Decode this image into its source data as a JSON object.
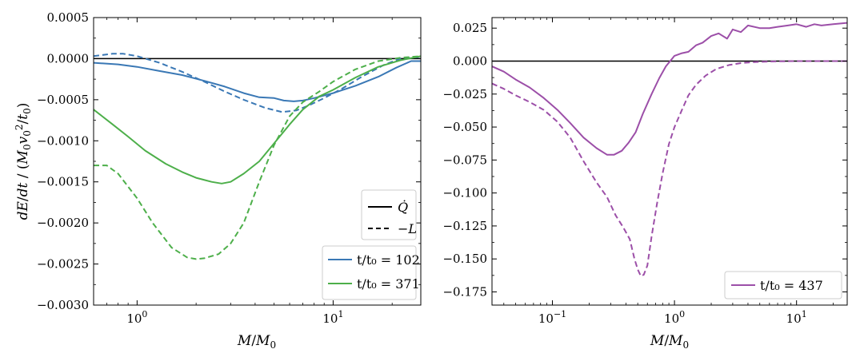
{
  "chart_data": [
    {
      "type": "line",
      "xscale": "log",
      "xlim": [
        0.6,
        28
      ],
      "ylim": [
        -0.003,
        0.0005
      ],
      "xlabel": "M/M₀",
      "ylabel": "dE/dt / (M₀v₀²/t₀)",
      "yticks": [
        0.0005,
        0.0,
        -0.0005,
        -0.001,
        -0.0015,
        -0.002,
        -0.0025,
        -0.003
      ],
      "ytick_labels": [
        "0.0005",
        "0.0000",
        "−0.0005",
        "−0.0010",
        "−0.0015",
        "−0.0020",
        "−0.0025",
        "−0.0030"
      ],
      "xticks": [
        1,
        10
      ],
      "xtick_labels": [
        {
          "base": "10",
          "exp": "0"
        },
        {
          "base": "10",
          "exp": "1"
        }
      ],
      "hline": 0,
      "style_legend": [
        {
          "label": "Q̇",
          "dash": "solid"
        },
        {
          "label": "−L",
          "dash": "dashed"
        }
      ],
      "series": [
        {
          "name": "t/t₀ = 102",
          "color": "#3a78b5",
          "dash": "solid",
          "x": [
            0.6,
            0.8,
            1.0,
            1.3,
            1.7,
            2.2,
            2.8,
            3.5,
            4.2,
            5.0,
            5.6,
            6.3,
            7.0,
            8.0,
            10,
            13,
            17,
            21,
            25,
            28
          ],
          "y": [
            -5e-05,
            -7e-05,
            -0.0001,
            -0.00015,
            -0.0002,
            -0.00027,
            -0.00034,
            -0.00042,
            -0.00047,
            -0.00048,
            -0.00051,
            -0.00052,
            -0.00051,
            -0.00048,
            -0.00042,
            -0.00033,
            -0.00022,
            -0.00011,
            -3e-05,
            -3e-05
          ]
        },
        {
          "name": "",
          "color": "#3a78b5",
          "dash": "dashed",
          "x": [
            0.6,
            0.75,
            0.85,
            1.0,
            1.3,
            1.7,
            2.2,
            2.8,
            3.5,
            4.5,
            5.5,
            6.5,
            7.5,
            9,
            11,
            14,
            18,
            22,
            28
          ],
          "y": [
            3e-05,
            6e-05,
            6e-05,
            3e-05,
            -5e-05,
            -0.00016,
            -0.00028,
            -0.0004,
            -0.0005,
            -0.0006,
            -0.00065,
            -0.00063,
            -0.00057,
            -0.00048,
            -0.00037,
            -0.00022,
            -8e-05,
            0.0,
            2e-05
          ]
        },
        {
          "name": "t/t₀ = 371",
          "color": "#4daf4a",
          "dash": "solid",
          "x": [
            0.6,
            0.75,
            0.9,
            1.1,
            1.4,
            1.7,
            2.0,
            2.4,
            2.7,
            3.0,
            3.5,
            4.2,
            5.0,
            6.0,
            7.0,
            8.5,
            10,
            13,
            17,
            22,
            28
          ],
          "y": [
            -0.00062,
            -0.0008,
            -0.00095,
            -0.00112,
            -0.00128,
            -0.00138,
            -0.00145,
            -0.0015,
            -0.00152,
            -0.0015,
            -0.0014,
            -0.00125,
            -0.00103,
            -0.0008,
            -0.00062,
            -0.00046,
            -0.00038,
            -0.00023,
            -0.0001,
            -2e-05,
            3e-05
          ]
        },
        {
          "name": "",
          "color": "#4daf4a",
          "dash": "dashed",
          "x": [
            0.6,
            0.7,
            0.8,
            1.0,
            1.2,
            1.5,
            1.8,
            2.0,
            2.2,
            2.6,
            3.0,
            3.5,
            4.2,
            5.0,
            6.0,
            7.0,
            8.5,
            10,
            13,
            17,
            22,
            28
          ],
          "y": [
            -0.0013,
            -0.0013,
            -0.0014,
            -0.0017,
            -0.002,
            -0.0023,
            -0.00242,
            -0.00244,
            -0.00243,
            -0.00238,
            -0.00225,
            -0.002,
            -0.0015,
            -0.00105,
            -0.0007,
            -0.00053,
            -0.0004,
            -0.00028,
            -0.00013,
            -3e-05,
            1e-05,
            3e-05
          ]
        }
      ],
      "legend": [
        {
          "label": "t/t₀ = 102",
          "color": "#3a78b5"
        },
        {
          "label": "t/t₀ = 371",
          "color": "#4daf4a"
        }
      ]
    },
    {
      "type": "line",
      "xscale": "log",
      "xlim": [
        0.032,
        26
      ],
      "ylim": [
        -0.185,
        0.033
      ],
      "xlabel": "M/M₀",
      "ylabel": "",
      "yticks": [
        0.025,
        0.0,
        -0.025,
        -0.05,
        -0.075,
        -0.1,
        -0.125,
        -0.15,
        -0.175
      ],
      "ytick_labels": [
        "0.025",
        "0.000",
        "−0.025",
        "−0.050",
        "−0.075",
        "−0.100",
        "−0.125",
        "−0.150",
        "−0.175"
      ],
      "xticks": [
        0.1,
        1,
        10
      ],
      "xtick_labels": [
        {
          "base": "10",
          "exp": "−1"
        },
        {
          "base": "10",
          "exp": "0"
        },
        {
          "base": "10",
          "exp": "1"
        }
      ],
      "hline": 0,
      "series": [
        {
          "name": "t/t₀ = 437",
          "color": "#9c4fa8",
          "dash": "solid",
          "x": [
            0.032,
            0.04,
            0.05,
            0.065,
            0.085,
            0.11,
            0.14,
            0.18,
            0.23,
            0.28,
            0.32,
            0.37,
            0.42,
            0.48,
            0.55,
            0.65,
            0.75,
            0.85,
            1.0,
            1.15,
            1.3,
            1.5,
            1.7,
            2.0,
            2.3,
            2.7,
            3.0,
            3.5,
            4.0,
            5.0,
            6.0,
            7.0,
            8.5,
            10,
            12,
            14,
            16,
            20,
            26
          ],
          "y": [
            -0.004,
            -0.008,
            -0.014,
            -0.02,
            -0.028,
            -0.037,
            -0.047,
            -0.058,
            -0.066,
            -0.071,
            -0.071,
            -0.068,
            -0.062,
            -0.054,
            -0.04,
            -0.025,
            -0.013,
            -0.004,
            0.004,
            0.006,
            0.007,
            0.012,
            0.014,
            0.019,
            0.021,
            0.017,
            0.024,
            0.022,
            0.027,
            0.025,
            0.025,
            0.026,
            0.027,
            0.028,
            0.026,
            0.028,
            0.027,
            0.028,
            0.029
          ]
        },
        {
          "name": "",
          "color": "#9c4fa8",
          "dash": "dashed",
          "x": [
            0.032,
            0.04,
            0.05,
            0.065,
            0.085,
            0.11,
            0.14,
            0.18,
            0.23,
            0.28,
            0.33,
            0.38,
            0.43,
            0.47,
            0.5,
            0.53,
            0.56,
            0.6,
            0.65,
            0.72,
            0.8,
            0.9,
            1.0,
            1.15,
            1.3,
            1.5,
            1.8,
            2.2,
            2.8,
            3.5,
            4.5,
            6.0,
            8.0,
            10,
            14,
            20,
            26
          ],
          "y": [
            -0.017,
            -0.021,
            -0.026,
            -0.031,
            -0.037,
            -0.046,
            -0.058,
            -0.076,
            -0.092,
            -0.103,
            -0.117,
            -0.126,
            -0.135,
            -0.15,
            -0.158,
            -0.163,
            -0.162,
            -0.155,
            -0.133,
            -0.108,
            -0.085,
            -0.063,
            -0.05,
            -0.037,
            -0.026,
            -0.018,
            -0.011,
            -0.006,
            -0.003,
            -0.0015,
            -0.0007,
            -0.0003,
            -0.0001,
            0.0,
            0.0,
            0.0,
            0.0
          ]
        }
      ],
      "legend": [
        {
          "label": "t/t₀ = 437",
          "color": "#9c4fa8"
        }
      ]
    }
  ]
}
